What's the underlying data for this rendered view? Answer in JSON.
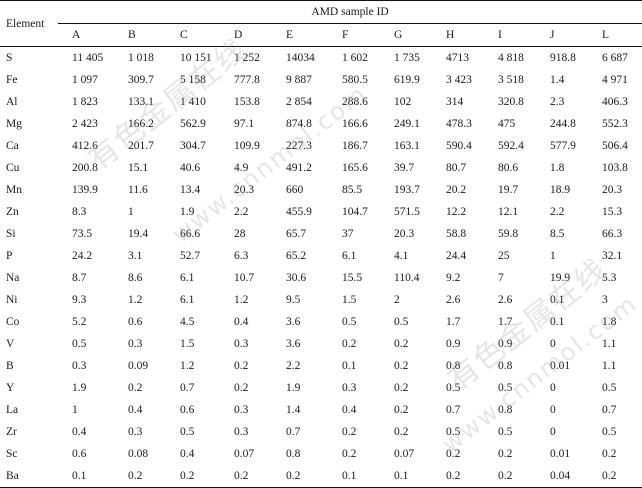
{
  "table": {
    "element_header": "Element",
    "group_header": "AMD sample ID",
    "columns": [
      "A",
      "B",
      "C",
      "D",
      "E",
      "F",
      "G",
      "H",
      "I",
      "J",
      "L"
    ],
    "rows": [
      {
        "element": "S",
        "values": [
          "11 405",
          "1 018",
          "10 151",
          "1 252",
          "14034",
          "1 602",
          "1 735",
          "4713",
          "4 818",
          "918.8",
          "6 687"
        ]
      },
      {
        "element": "Fe",
        "values": [
          "1 097",
          "309.7",
          "5 158",
          "777.8",
          "9 887",
          "580.5",
          "619.9",
          "3 423",
          "3 518",
          "1.4",
          "4 971"
        ]
      },
      {
        "element": "Al",
        "values": [
          "1 823",
          "133.1",
          "1 410",
          "153.8",
          "2 854",
          "288.6",
          "102",
          "314",
          "320.8",
          "2.3",
          "406.3"
        ]
      },
      {
        "element": "Mg",
        "values": [
          "2 423",
          "166.2",
          "562.9",
          "97.1",
          "874.8",
          "166.6",
          "249.1",
          "478.3",
          "475",
          "244.8",
          "552.3"
        ]
      },
      {
        "element": "Ca",
        "values": [
          "412.6",
          "201.7",
          "304.7",
          "109.9",
          "227.3",
          "186.7",
          "163.1",
          "590.4",
          "592.4",
          "577.9",
          "506.4"
        ]
      },
      {
        "element": "Cu",
        "values": [
          "200.8",
          "15.1",
          "40.6",
          "4.9",
          "491.2",
          "165.6",
          "39.7",
          "80.7",
          "80.6",
          "1.8",
          "103.8"
        ]
      },
      {
        "element": "Mn",
        "values": [
          "139.9",
          "11.6",
          "13.4",
          "20.3",
          "660",
          "85.5",
          "193.7",
          "20.2",
          "19.7",
          "18.9",
          "20.3"
        ]
      },
      {
        "element": "Zn",
        "values": [
          "8.3",
          "1",
          "1.9",
          "2.2",
          "455.9",
          "104.7",
          "571.5",
          "12.2",
          "12.1",
          "2.2",
          "15.3"
        ]
      },
      {
        "element": "Si",
        "values": [
          "73.5",
          "19.4",
          "66.6",
          "28",
          "65.7",
          "37",
          "20.3",
          "58.8",
          "59.8",
          "8.5",
          "66.3"
        ]
      },
      {
        "element": "P",
        "values": [
          "24.2",
          "3.1",
          "52.7",
          "6.3",
          "65.2",
          "6.1",
          "4.1",
          "24.4",
          "25",
          "1",
          "32.1"
        ]
      },
      {
        "element": "Na",
        "values": [
          "8.7",
          "8.6",
          "6.1",
          "10.7",
          "30.6",
          "15.5",
          "110.4",
          "9.2",
          "7",
          "19.9",
          "5.3"
        ]
      },
      {
        "element": "Ni",
        "values": [
          "9.3",
          "1.2",
          "6.1",
          "1.2",
          "9.5",
          "1.5",
          "2",
          "2.6",
          "2.6",
          "0.1",
          "3"
        ]
      },
      {
        "element": "Co",
        "values": [
          "5.2",
          "0.6",
          "4.5",
          "0.4",
          "3.6",
          "0.5",
          "0.5",
          "1.7",
          "1.7",
          "0.1",
          "1.8"
        ]
      },
      {
        "element": "V",
        "values": [
          "0.5",
          "0.3",
          "1.5",
          "0.3",
          "3.6",
          "0.2",
          "0.2",
          "0.9",
          "0.9",
          "0",
          "1.1"
        ]
      },
      {
        "element": "B",
        "values": [
          "0.3",
          "0.09",
          "1.2",
          "0.2",
          "2.2",
          "0.1",
          "0.2",
          "0.8",
          "0.8",
          "0.01",
          "1.1"
        ]
      },
      {
        "element": "Y",
        "values": [
          "1.9",
          "0.2",
          "0.7",
          "0.2",
          "1.9",
          "0.3",
          "0.2",
          "0.5",
          "0.5",
          "0",
          "0.5"
        ]
      },
      {
        "element": "La",
        "values": [
          "1",
          "0.4",
          "0.6",
          "0.3",
          "1.4",
          "0.4",
          "0.2",
          "0.7",
          "0.8",
          "0",
          "0.7"
        ]
      },
      {
        "element": "Zr",
        "values": [
          "0.4",
          "0.3",
          "0.5",
          "0.3",
          "0.7",
          "0.2",
          "0.2",
          "0.5",
          "0.5",
          "0",
          "0.5"
        ]
      },
      {
        "element": "Sc",
        "values": [
          "0.6",
          "0.08",
          "0.4",
          "0.07",
          "0.8",
          "0.2",
          "0.07",
          "0.2",
          "0.2",
          "0.01",
          "0.2"
        ]
      },
      {
        "element": "Ba",
        "values": [
          "0.1",
          "0.2",
          "0.2",
          "0.2",
          "0.2",
          "0.1",
          "0.1",
          "0.2",
          "0.2",
          "0.04",
          "0.2"
        ]
      }
    ]
  },
  "watermark": {
    "text_1": "有色金属在线",
    "text_2": "www.cnnmol.com"
  }
}
